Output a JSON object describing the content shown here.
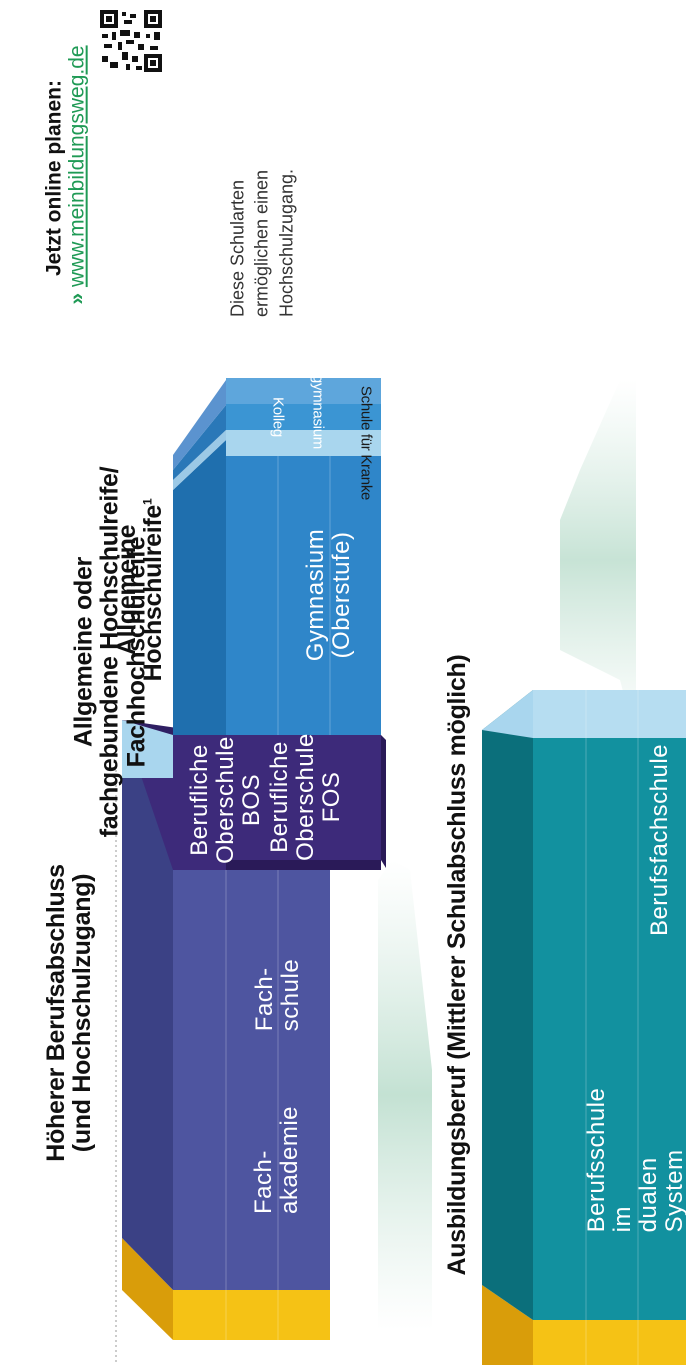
{
  "online": {
    "heading": "Jetzt online planen:",
    "link_prefix": "»",
    "link": "www.meinbildungsweg.de"
  },
  "note": "Diese Schularten\nermöglichen einen\nHochschulzugang.",
  "headings": {
    "hoeherer": "Höherer Berufsabschluss\n(und Hochschulzugang)",
    "allgemeine_oder": "Allgemeine oder\nfachgebundene Hochschulreife/\nFachhochschulreife",
    "allgemeine_hsr": "Allgemeine\nHochschulreife",
    "allgemeine_hsr_sup": "1",
    "ausbildungsberuf": "Ausbildungsberuf (Mittlerer Schulabschluss möglich)"
  },
  "blocks": {
    "fachakademie": "Fach-\nakademie",
    "fachschule": "Fach-\nschule",
    "bos": "Berufliche\nOberschule\nBOS",
    "fos": "Berufliche\nOberschule\nFOS",
    "gymnasium": "Gymnasium\n(Oberstufe)",
    "schule_kranke": "Schule für Kranke",
    "kolleg": "Kolleg",
    "abendgymnasium": "Abendgymnasium",
    "berufsschule": "Berufsschule im\ndualen System",
    "berufsfachschule": "Berufsfachschule"
  },
  "colors": {
    "navy_blue": "#4e55a0",
    "purple": "#3d2a7a",
    "blue": "#2f86c9",
    "light_blue": "#a9d6ee",
    "teal": "#12919f",
    "yellow": "#f5c215",
    "link_green": "#1f9a55"
  },
  "icons": [
    "qr-code-icon"
  ]
}
